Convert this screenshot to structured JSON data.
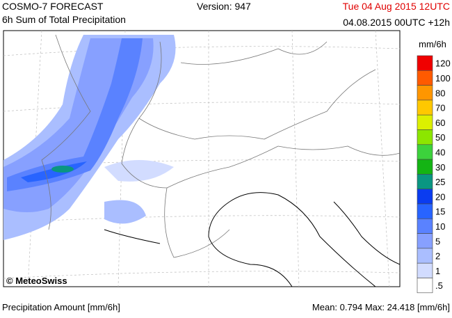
{
  "header": {
    "model": "COSMO-7 FORECAST",
    "product": "6h Sum of Total Precipitation",
    "version": "Version: 947",
    "valid_time": "Tue 04 Aug 2015 12UTC",
    "run": "04.08.2015 00UTC +12h"
  },
  "legend": {
    "unit": "mm/6h",
    "levels": [
      {
        "label": "120",
        "color": "#f00000"
      },
      {
        "label": "100",
        "color": "#ff5a00"
      },
      {
        "label": "80",
        "color": "#ff9600"
      },
      {
        "label": "70",
        "color": "#ffc800"
      },
      {
        "label": "60",
        "color": "#dcf000"
      },
      {
        "label": "50",
        "color": "#8ce600"
      },
      {
        "label": "40",
        "color": "#3cd23c"
      },
      {
        "label": "30",
        "color": "#14b414"
      },
      {
        "label": "25",
        "color": "#0a9682"
      },
      {
        "label": "20",
        "color": "#0a3cf0"
      },
      {
        "label": "15",
        "color": "#2864ff"
      },
      {
        "label": "10",
        "color": "#5a82ff"
      },
      {
        "label": "5",
        "color": "#87a0ff"
      },
      {
        "label": "2",
        "color": "#aabeff"
      },
      {
        "label": "1",
        "color": "#d2dcff"
      },
      {
        "label": ".5",
        "color": "#ffffff"
      }
    ]
  },
  "map": {
    "credit": "© MeteoSwiss"
  },
  "footer": {
    "left": "Precipitation Amount [mm/6h]",
    "mean_label": "Mean:",
    "mean": "0.794",
    "max_label": "Max:",
    "max": "24.418",
    "unit": "[mm/6h]"
  }
}
